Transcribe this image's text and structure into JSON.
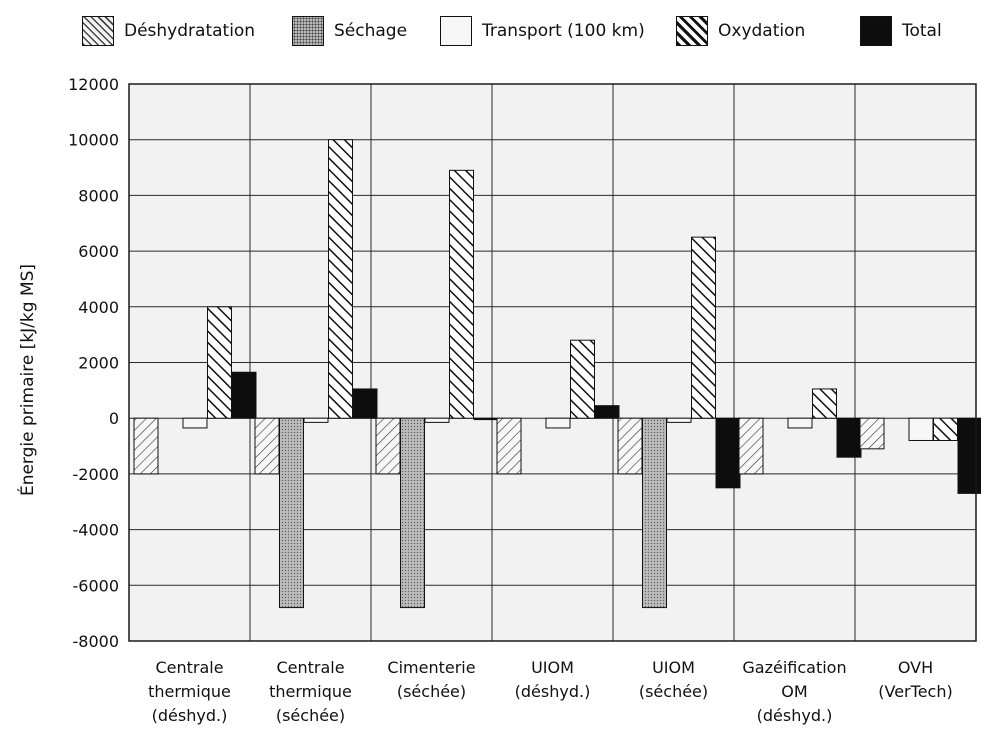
{
  "chart_data": {
    "type": "bar",
    "title": "",
    "xlabel": "",
    "ylabel": "Énergie primaire [kJ/kg MS]",
    "ylim": [
      -8000,
      12000
    ],
    "yticks": [
      12000,
      10000,
      8000,
      6000,
      4000,
      2000,
      0,
      -2000,
      -4000,
      -6000,
      -8000
    ],
    "grid": true,
    "legend_position": "top",
    "categories": [
      [
        "Centrale",
        "thermique",
        "(déshyd.)"
      ],
      [
        "Centrale",
        "thermique",
        "(séchée)"
      ],
      [
        "Cimenterie",
        "(séchée)"
      ],
      [
        "UIOM",
        "(déshyd.)"
      ],
      [
        "UIOM",
        "(séchée)"
      ],
      [
        "Gazéification",
        "OM",
        "(déshyd.)"
      ],
      [
        "OVH",
        "(VerTech)"
      ]
    ],
    "series": [
      {
        "name": "Déshydratation",
        "pattern": "light-hatch",
        "values": [
          -2000,
          -2000,
          -2000,
          -2000,
          -2000,
          -2000,
          -1100
        ]
      },
      {
        "name": "Séchage",
        "pattern": "dotted-grey",
        "values": [
          0,
          -6800,
          -6800,
          0,
          -6800,
          0,
          0
        ]
      },
      {
        "name": "Transport (100 km)",
        "pattern": "plain-light",
        "values": [
          -350,
          -150,
          -150,
          -350,
          -150,
          -350,
          -800
        ]
      },
      {
        "name": "Oxydation",
        "pattern": "bold-hatch",
        "values": [
          4000,
          10000,
          8900,
          2800,
          6500,
          1050,
          -800
        ]
      },
      {
        "name": "Total",
        "pattern": "solid-black",
        "values": [
          1650,
          1050,
          -50,
          450,
          -2500,
          -1400,
          -2700
        ]
      }
    ],
    "colors": {
      "plot_background": "#f2f2f2",
      "grid": "#2a2a2a",
      "total": "#0d0d0d",
      "sechage": "#a9a9a9",
      "transport": "#f7f7f7"
    }
  }
}
